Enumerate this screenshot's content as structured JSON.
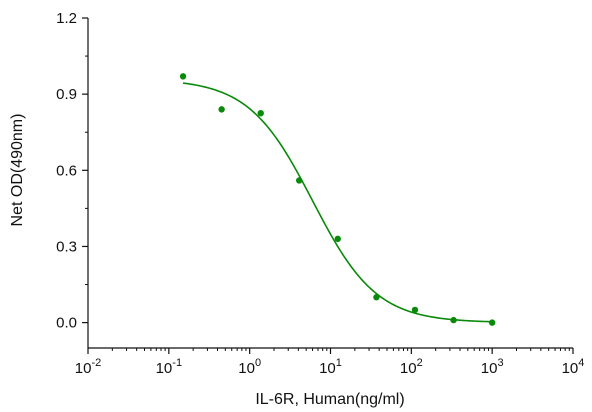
{
  "chart_data": {
    "type": "scatter",
    "xlabel": "IL-6R, Human(ng/ml)",
    "ylabel": "Net OD(490nm)",
    "x_scale": "log10",
    "xlim": [
      0.01,
      10000
    ],
    "ylim": [
      -0.1,
      1.2
    ],
    "x_ticks": [
      {
        "base": "10",
        "exp": "-2"
      },
      {
        "base": "10",
        "exp": "-1"
      },
      {
        "base": "10",
        "exp": "0"
      },
      {
        "base": "10",
        "exp": "1"
      },
      {
        "base": "10",
        "exp": "2"
      },
      {
        "base": "10",
        "exp": "3"
      },
      {
        "base": "10",
        "exp": "4"
      }
    ],
    "y_ticks": [
      "0.0",
      "0.3",
      "0.6",
      "0.9",
      "1.2"
    ],
    "grid": false,
    "series": [
      {
        "color": "#0a8a0a",
        "x": [
          0.15,
          0.45,
          1.37,
          4.1,
          12.3,
          37,
          111,
          333,
          1000
        ],
        "y": [
          0.97,
          0.84,
          0.825,
          0.56,
          0.33,
          0.1,
          0.05,
          0.01,
          0.0
        ]
      }
    ],
    "fit_curve": {
      "color": "#0a8a0a",
      "model": "4PL",
      "top": 0.96,
      "bottom": 0.0,
      "ec50": 6.0,
      "hill": 1.1
    }
  }
}
